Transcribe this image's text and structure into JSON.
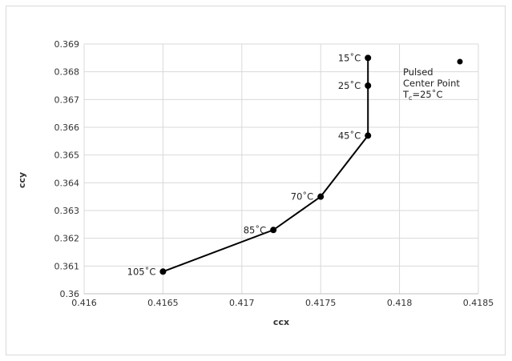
{
  "chart_data": {
    "type": "scatter",
    "title": "",
    "xlabel": "ccx",
    "ylabel": "ccy",
    "xlim": [
      0.416,
      0.4185
    ],
    "ylim": [
      0.36,
      0.369
    ],
    "x_ticks": [
      "0.416",
      "0.4165",
      "0.417",
      "0.4175",
      "0.418",
      "0.4185"
    ],
    "y_ticks": [
      "0.36",
      "0.361",
      "0.362",
      "0.363",
      "0.364",
      "0.365",
      "0.366",
      "0.367",
      "0.368",
      "0.369"
    ],
    "grid": true,
    "legend_position": "top-right",
    "series": [
      {
        "name": "Pulsed Center Point Tc=25°C",
        "color": "#000000",
        "points": [
          {
            "x": 0.4165,
            "y": 0.3608,
            "label": "105˚C"
          },
          {
            "x": 0.4172,
            "y": 0.3623,
            "label": "85˚C"
          },
          {
            "x": 0.4175,
            "y": 0.3635,
            "label": "70˚C"
          },
          {
            "x": 0.4178,
            "y": 0.3657,
            "label": "45˚C"
          },
          {
            "x": 0.4178,
            "y": 0.3675,
            "label": "25˚C"
          },
          {
            "x": 0.4178,
            "y": 0.3685,
            "label": "15˚C"
          }
        ]
      }
    ],
    "legend": {
      "line1": "Pulsed",
      "line2": "Center Point",
      "line3_prefix": "T",
      "line3_sub": "c",
      "line3_suffix": "=25˚C"
    }
  }
}
